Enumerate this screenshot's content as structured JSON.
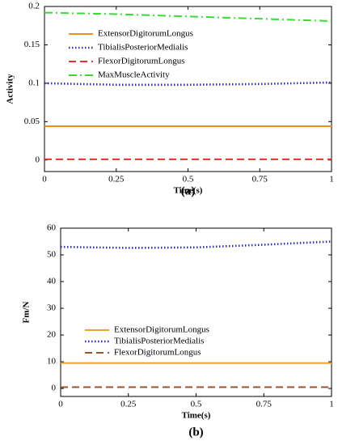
{
  "chart_data": [
    {
      "type": "line",
      "caption": "(a)",
      "xlabel": "Time(s)",
      "ylabel": "Activity",
      "x": [
        0,
        0.25,
        0.5,
        0.75,
        1
      ],
      "xlim": [
        0,
        1
      ],
      "xticks": [
        0,
        0.25,
        0.5,
        0.75,
        1
      ],
      "ylim": [
        -0.015,
        0.2
      ],
      "yticks": [
        0,
        0.05,
        0.1,
        0.15,
        0.2
      ],
      "legend": "upper left",
      "series": [
        {
          "name": "ExtensorDigitorumLongus",
          "color": "#f28e1c",
          "style": "solid",
          "values": [
            0.044,
            0.044,
            0.044,
            0.044,
            0.044
          ]
        },
        {
          "name": "TibialisPosteriorMedialis",
          "color": "#2a2acc",
          "style": "dotted",
          "values": [
            0.1,
            0.098,
            0.098,
            0.099,
            0.101
          ]
        },
        {
          "name": "FlexorDigitorumLongus",
          "color": "#e8312a",
          "style": "dashed",
          "values": [
            0.001,
            0.001,
            0.001,
            0.001,
            0.001
          ]
        },
        {
          "name": "MaxMuscleActivity",
          "color": "#3ada3a",
          "style": "dashdot",
          "values": [
            0.192,
            0.19,
            0.187,
            0.184,
            0.181
          ]
        }
      ]
    },
    {
      "type": "line",
      "caption": "(b)",
      "xlabel": "Time(s)",
      "ylabel": "Fm/N",
      "x": [
        0,
        0.25,
        0.5,
        0.75,
        1
      ],
      "xlim": [
        0,
        1
      ],
      "xticks": [
        0,
        0.25,
        0.5,
        0.75,
        1
      ],
      "ylim": [
        -3,
        60
      ],
      "yticks": [
        0,
        10,
        20,
        30,
        40,
        50,
        60
      ],
      "legend": "center left",
      "series": [
        {
          "name": "ExtensorDigitorumLongus",
          "color": "#e8a030",
          "style": "solid",
          "values": [
            9.5,
            9.5,
            9.5,
            9.5,
            9.5
          ]
        },
        {
          "name": "TibialisPosteriorMedialis",
          "color": "#2a2acc",
          "style": "dotted",
          "values": [
            53,
            52.6,
            52.8,
            53.8,
            55
          ]
        },
        {
          "name": "FlexorDigitorumLongus",
          "color": "#a0522d",
          "style": "dashed",
          "values": [
            0.5,
            0.5,
            0.5,
            0.5,
            0.5
          ]
        }
      ]
    }
  ]
}
